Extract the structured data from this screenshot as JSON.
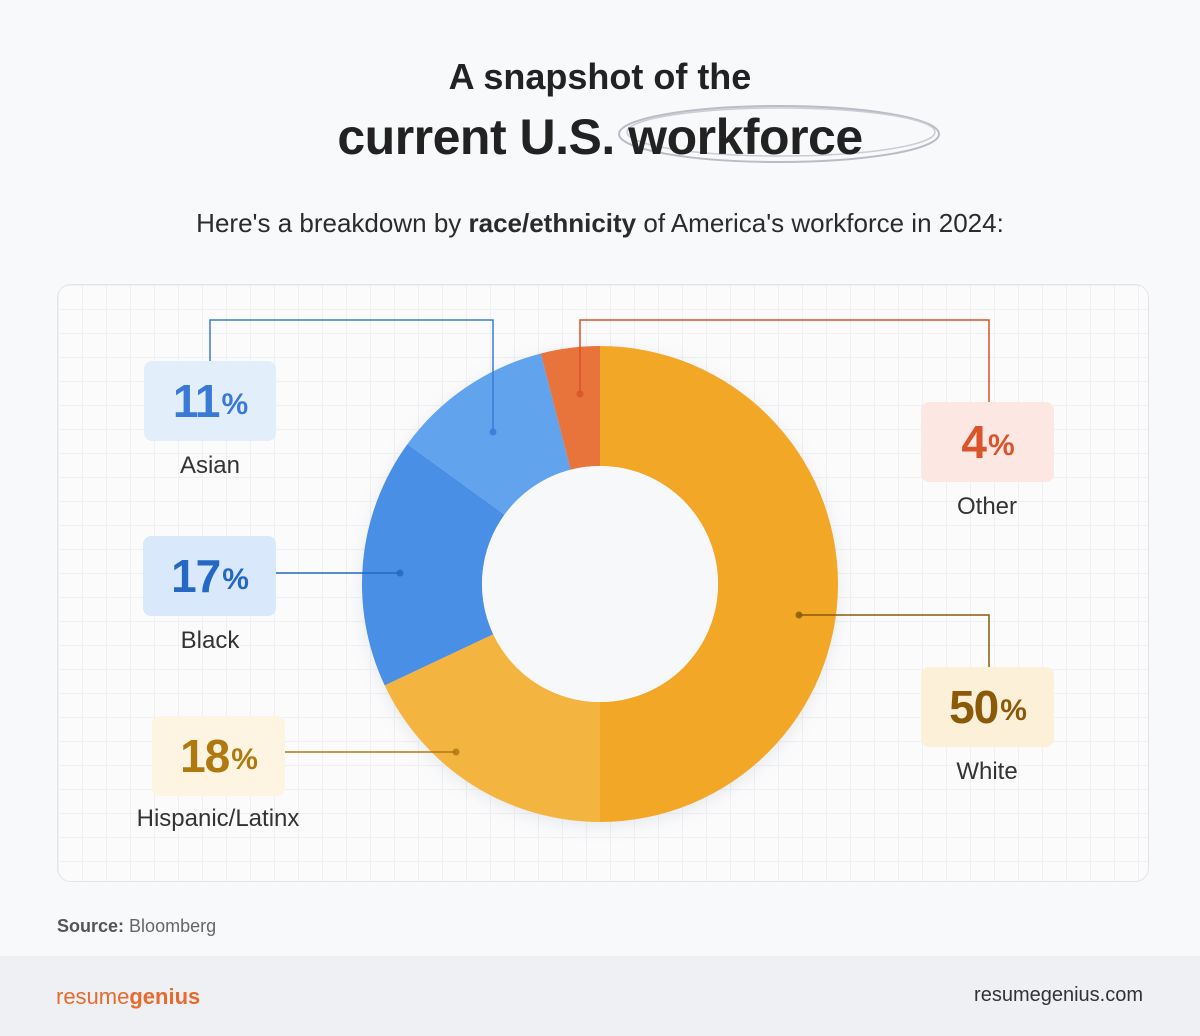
{
  "header": {
    "title_line1": "A snapshot of the",
    "title_line2_plain": "current U.S.",
    "title_line2_highlight": "workforce",
    "subtitle_pre": "Here's a breakdown by ",
    "subtitle_bold": "race/ethnicity",
    "subtitle_post": " of America's workforce in 2024:"
  },
  "chart_data": {
    "type": "pie",
    "title": "A snapshot of the current U.S. workforce",
    "subtitle": "Here's a breakdown by race/ethnicity of America's workforce in 2024:",
    "unit": "%",
    "slices": [
      {
        "label": "White",
        "value": 50,
        "display": "50",
        "color": "#f2a828",
        "badge_bg": "#fcf0d9",
        "text_color": "#8a5a08"
      },
      {
        "label": "Hispanic/Latinx",
        "value": 18,
        "display": "18",
        "color": "#f3b440",
        "badge_bg": "#fdf5e2",
        "text_color": "#b07910"
      },
      {
        "label": "Black",
        "value": 17,
        "display": "17",
        "color": "#4a8fe6",
        "badge_bg": "#d9e8fa",
        "text_color": "#2468c4"
      },
      {
        "label": "Asian",
        "value": 11,
        "display": "11",
        "color": "#62a3ee",
        "badge_bg": "#e3eefb",
        "text_color": "#3a7ad6"
      },
      {
        "label": "Other",
        "value": 4,
        "display": "4",
        "color": "#e8733a",
        "badge_bg": "#fde7e3",
        "text_color": "#d9532b"
      }
    ]
  },
  "source": {
    "label": "Source:",
    "value": "Bloomberg"
  },
  "footer": {
    "brand_light": "resume",
    "brand_bold": "genius",
    "site": "resumegenius.com"
  },
  "colors": {
    "accent": "#e86a2c",
    "background": "#f8f9fb"
  }
}
